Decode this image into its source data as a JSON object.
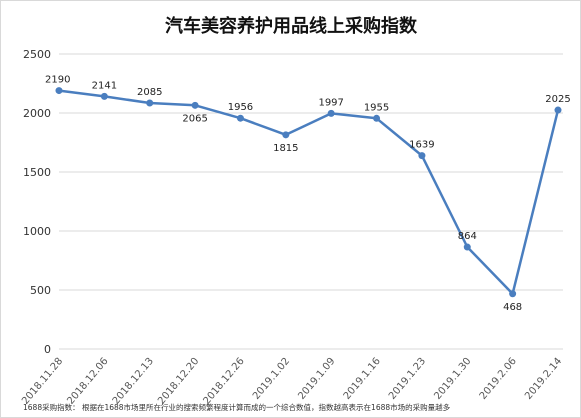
{
  "chart_data": {
    "type": "line",
    "title": "汽车美容养护用品线上采购指数",
    "categories": [
      "2018.11.28",
      "2018.12.06",
      "2018.12.13",
      "2018.12.20",
      "2018.12.26",
      "2019.1.02",
      "2019.1.09",
      "2019.1.16",
      "2019.1.23",
      "2019.1.30",
      "2019.2.06",
      "2019.2.14"
    ],
    "values": [
      2190,
      2141,
      2085,
      2065,
      1956,
      1815,
      1997,
      1955,
      1639,
      864,
      468,
      2025
    ],
    "ylim": [
      0,
      2500
    ],
    "yticks": [
      0,
      500,
      1000,
      1500,
      2000,
      2500
    ],
    "label_position": [
      "above",
      "above",
      "above",
      "below",
      "above",
      "below",
      "above",
      "above",
      "above",
      "above",
      "below",
      "above"
    ],
    "grid": "horizontal",
    "legend": "none",
    "colors": {
      "line": "#4a7ebf",
      "marker": "#4a7ebf",
      "grid": "#d9d9d9"
    },
    "footnote": "1688采购指数： 根据在1688市场里所在行业的搜索频繁程度计算而成的一个综合数值，指数越高表示在1688市场的采购量越多"
  }
}
